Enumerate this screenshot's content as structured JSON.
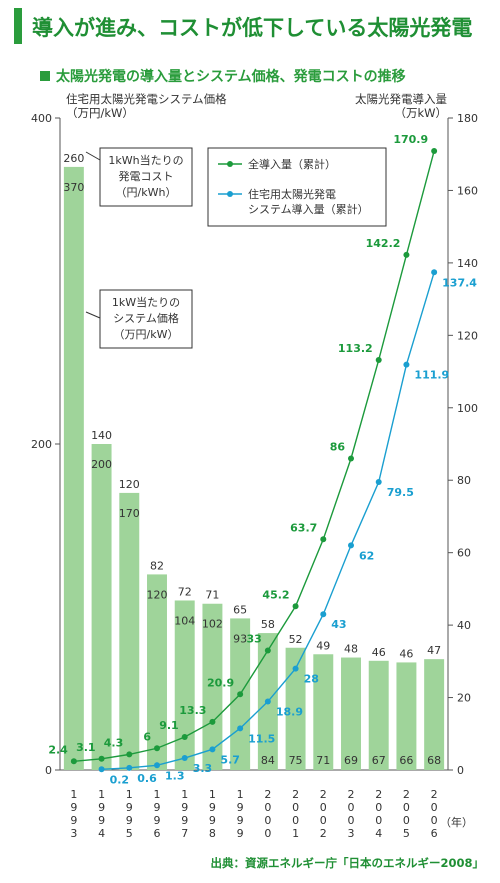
{
  "header": {
    "title": "導入が進み、コストが低下している太陽光発電",
    "subtitle": "太陽光発電の導入量とシステム価格、発電コストの推移",
    "left_axis_title": [
      "住宅用太陽光発電システム価格",
      "（万円/kW）"
    ],
    "right_axis_title": [
      "太陽光発電導入量",
      "（万kW）"
    ],
    "source": "出典：資源エネルギー庁「日本のエネルギー2008」",
    "year_unit": "（年）"
  },
  "colors": {
    "title_green": "#1f8f34",
    "bar": "#9fd49a",
    "line_total": "#1c9a3c",
    "line_residential": "#1a9fd0",
    "cost_label": "#333333"
  },
  "chart_data": {
    "type": "bar+line",
    "years": [
      "1993",
      "1994",
      "1995",
      "1996",
      "1997",
      "1998",
      "1999",
      "2000",
      "2001",
      "2002",
      "2003",
      "2004",
      "2005",
      "2006"
    ],
    "year_labels": [
      [
        "1",
        "9",
        "9",
        "3"
      ],
      [
        "1",
        "9",
        "9",
        "4"
      ],
      [
        "1",
        "9",
        "9",
        "5"
      ],
      [
        "1",
        "9",
        "9",
        "6"
      ],
      [
        "1",
        "9",
        "9",
        "7"
      ],
      [
        "1",
        "9",
        "9",
        "8"
      ],
      [
        "1",
        "9",
        "9",
        "9"
      ],
      [
        "2",
        "0",
        "0",
        "0"
      ],
      [
        "2",
        "0",
        "0",
        "1"
      ],
      [
        "2",
        "0",
        "0",
        "2"
      ],
      [
        "2",
        "0",
        "0",
        "3"
      ],
      [
        "2",
        "0",
        "0",
        "4"
      ],
      [
        "2",
        "0",
        "0",
        "5"
      ],
      [
        "2",
        "0",
        "0",
        "6"
      ]
    ],
    "left_axis": {
      "min": 0,
      "max": 400,
      "ticks": [
        0,
        200,
        400
      ]
    },
    "right_axis": {
      "min": 0,
      "max": 180,
      "ticks": [
        0,
        20,
        40,
        60,
        80,
        100,
        120,
        140,
        160,
        180
      ]
    },
    "system_price": {
      "values": [
        370,
        200,
        170,
        120,
        104,
        102,
        93,
        84,
        75,
        71,
        69,
        67,
        66,
        68
      ]
    },
    "generation_cost": {
      "values": [
        260,
        140,
        120,
        82,
        72,
        71,
        65,
        58,
        52,
        49,
        48,
        46,
        46,
        47
      ]
    },
    "series": [
      {
        "name": "全導入量（累計）",
        "values": [
          2.4,
          3.1,
          4.3,
          6.0,
          9.1,
          13.3,
          20.9,
          33.0,
          45.2,
          63.7,
          86.0,
          113.2,
          142.2,
          170.9
        ]
      },
      {
        "name": "住宅用太陽光発電システム導入量（累計）",
        "values": [
          null,
          0.2,
          0.6,
          1.3,
          3.3,
          5.7,
          11.5,
          18.9,
          28.0,
          43.0,
          62.0,
          79.5,
          111.9,
          137.4
        ]
      }
    ],
    "legend": {
      "placement": "top-right",
      "items": [
        [
          "全導入量（累計）"
        ],
        [
          "住宅用太陽光発電",
          "システム導入量（累計）"
        ]
      ]
    },
    "annotations": [
      {
        "lines": [
          "1kWh当たりの",
          "発電コスト",
          "（円/kWh）"
        ]
      },
      {
        "lines": [
          "1kW当たりの",
          "システム価格",
          "（万円/kW）"
        ]
      }
    ]
  }
}
